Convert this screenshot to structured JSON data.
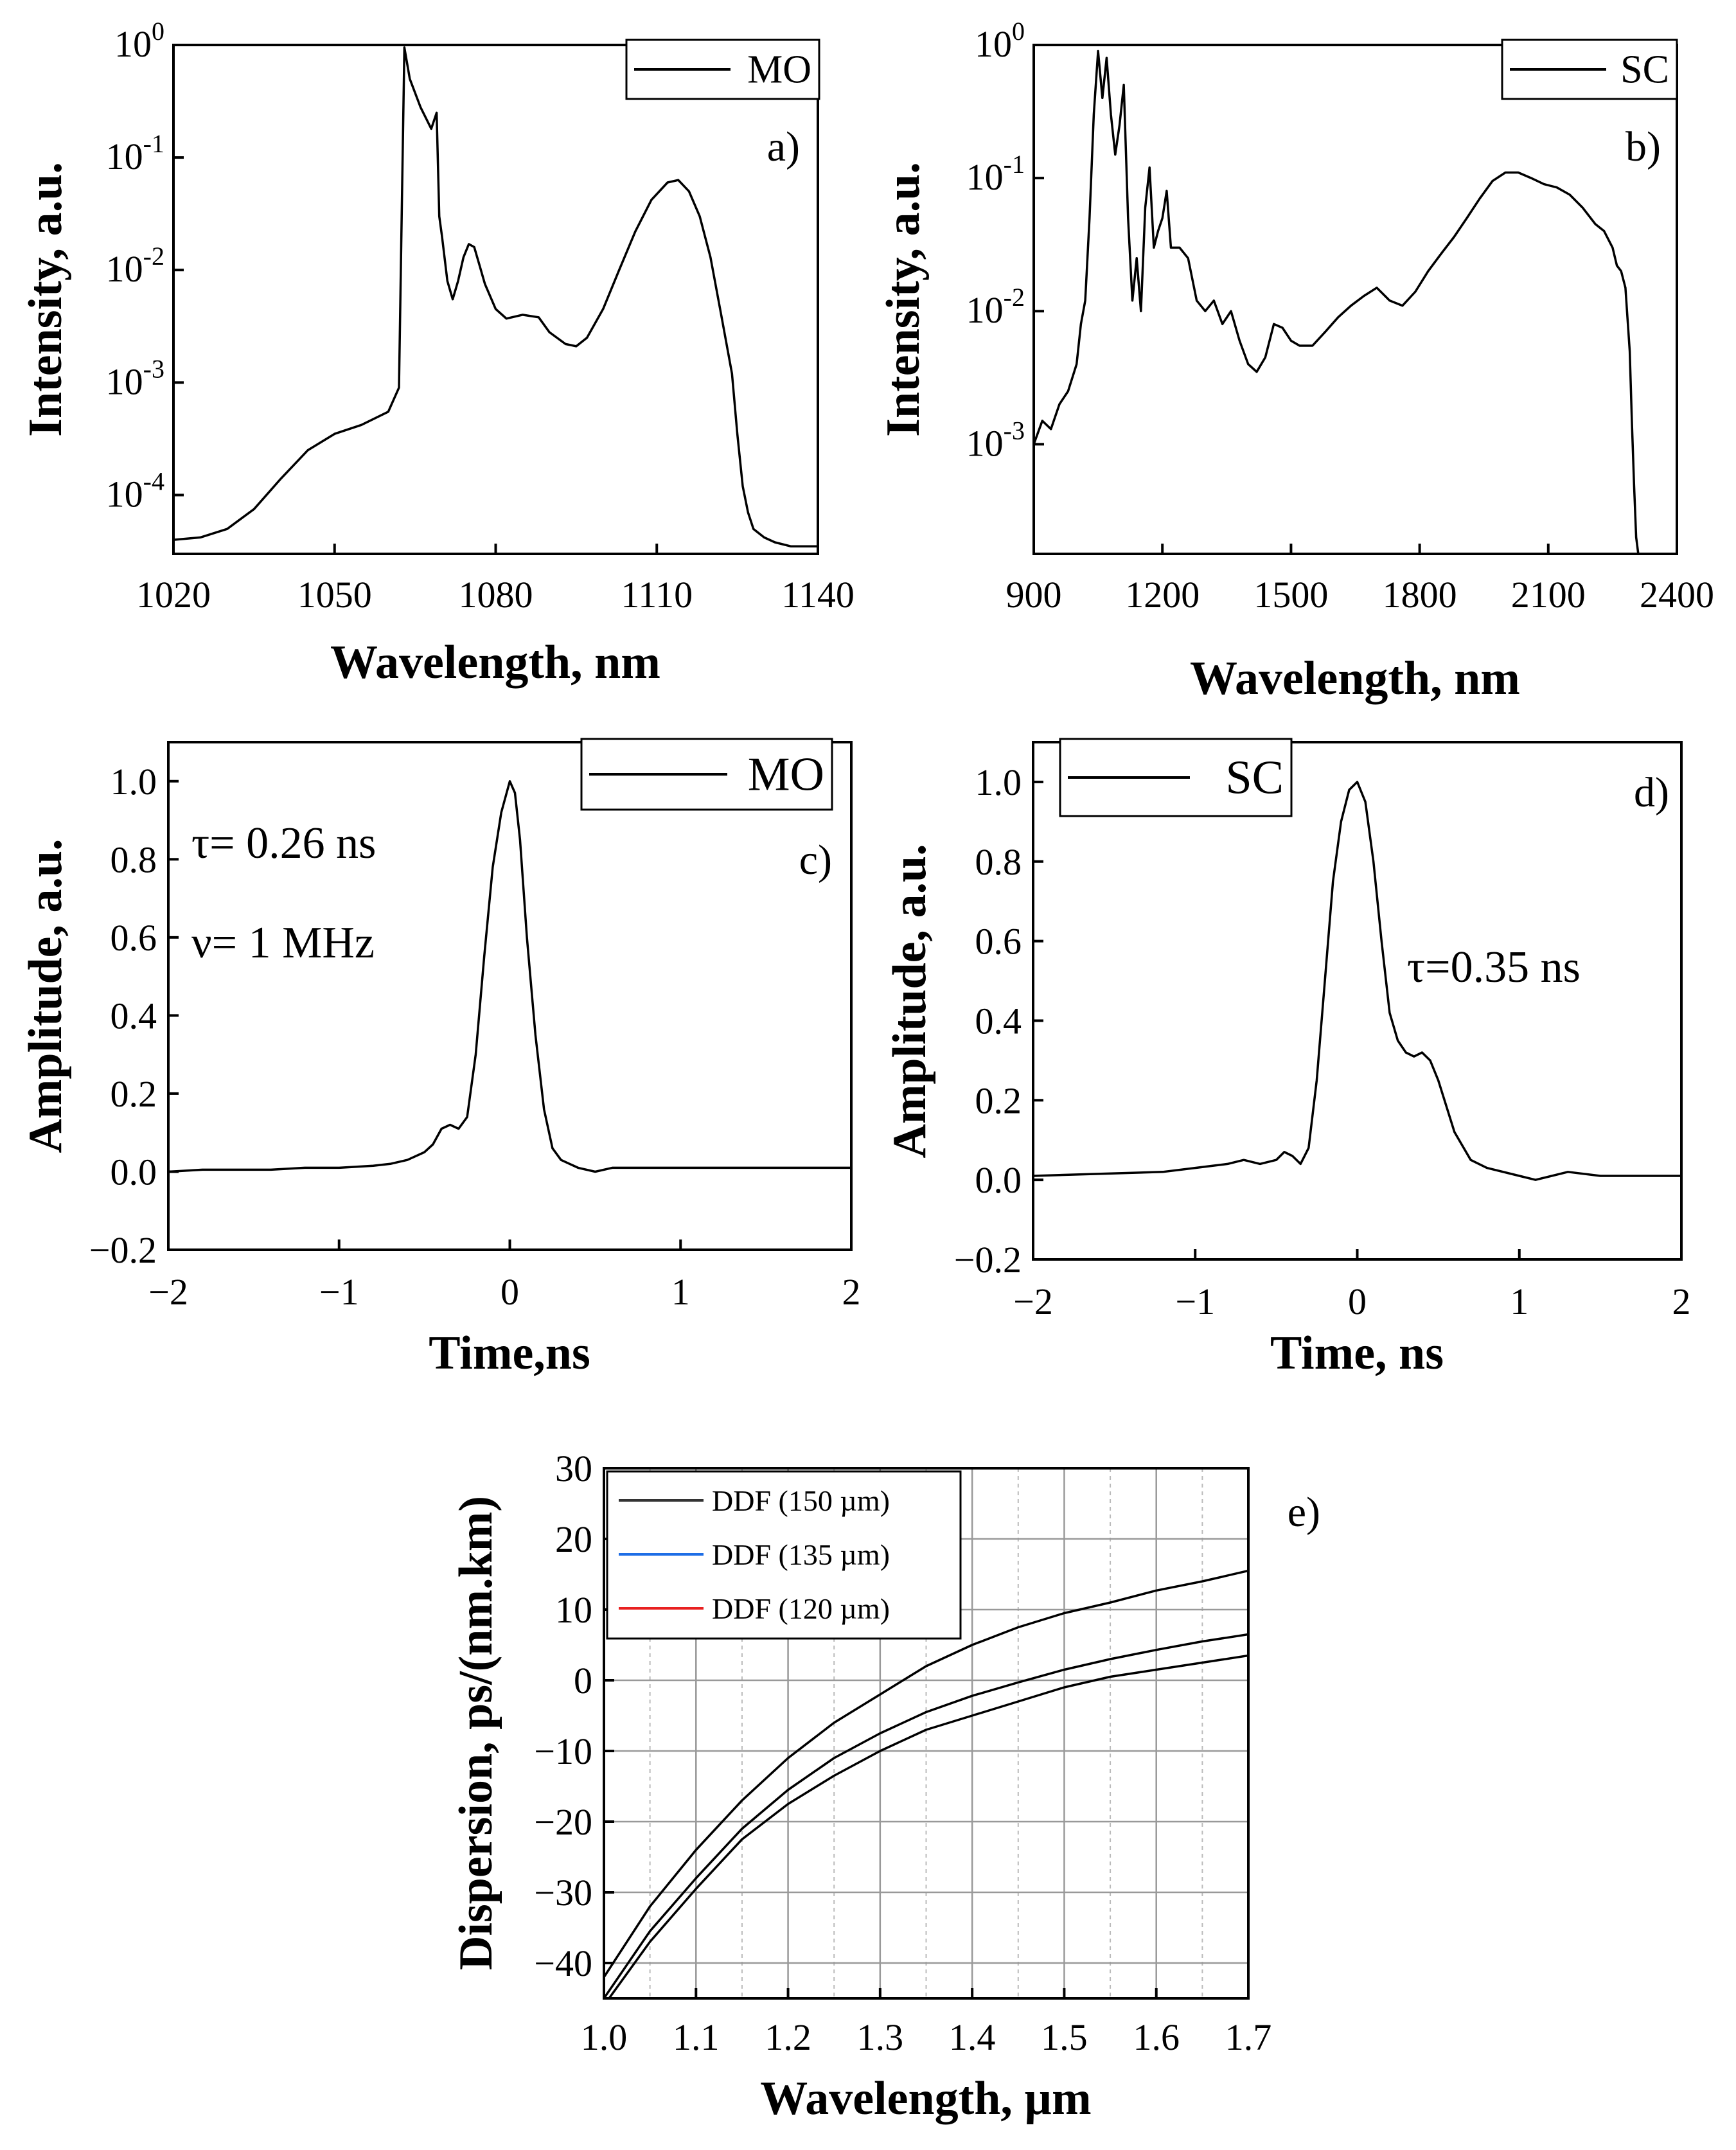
{
  "chart_data": [
    {
      "id": "a",
      "type": "line",
      "panel_label": "a)",
      "xlabel": "Wavelength, nm",
      "ylabel": "Intensity, a.u.",
      "xlim": [
        1020,
        1140
      ],
      "ylim": [
        3e-05,
        1.0
      ],
      "yscale": "log",
      "xticks": [
        "1020",
        "1050",
        "1080",
        "1110",
        "1140"
      ],
      "yticks": [
        {
          "base": "10",
          "exp": "0",
          "value": 1.0
        },
        {
          "base": "10",
          "exp": "-1",
          "value": 0.1
        },
        {
          "base": "10",
          "exp": "-2",
          "value": 0.01
        },
        {
          "base": "10",
          "exp": "-3",
          "value": 0.001
        },
        {
          "base": "10",
          "exp": "-4",
          "value": 0.0001
        }
      ],
      "grid": false,
      "legend_position": "top-right",
      "series": [
        {
          "name": "MO",
          "color": "#000000",
          "x": [
            1020,
            1025,
            1030,
            1035,
            1040,
            1045,
            1050,
            1055,
            1060,
            1062,
            1062.5,
            1063,
            1064,
            1066,
            1068,
            1069,
            1069.5,
            1070,
            1071,
            1072,
            1073,
            1074,
            1075,
            1076,
            1077,
            1078,
            1080,
            1082,
            1085,
            1088,
            1090,
            1093,
            1095,
            1097,
            1100,
            1103,
            1106,
            1109,
            1112,
            1114,
            1116,
            1118,
            1120,
            1122,
            1124,
            1125,
            1126,
            1127,
            1128,
            1130,
            1132,
            1135,
            1140
          ],
          "y": [
            4e-05,
            4.2e-05,
            5e-05,
            7.5e-05,
            0.00014,
            0.00025,
            0.00035,
            0.00042,
            0.00055,
            0.0009,
            0.03,
            0.95,
            0.5,
            0.28,
            0.18,
            0.25,
            0.03,
            0.02,
            0.008,
            0.0055,
            0.008,
            0.013,
            0.017,
            0.016,
            0.011,
            0.0075,
            0.0045,
            0.0037,
            0.004,
            0.0038,
            0.0028,
            0.0022,
            0.0021,
            0.0025,
            0.0045,
            0.01,
            0.022,
            0.042,
            0.06,
            0.063,
            0.05,
            0.03,
            0.013,
            0.004,
            0.0012,
            0.00035,
            0.00012,
            7e-05,
            5e-05,
            4.2e-05,
            3.8e-05,
            3.5e-05,
            3.5e-05
          ]
        }
      ]
    },
    {
      "id": "b",
      "type": "line",
      "panel_label": "b)",
      "xlabel": "Wavelength, nm",
      "ylabel": "Intensity, a.u.",
      "xlim": [
        900,
        2400
      ],
      "ylim": [
        0.00015,
        1.0
      ],
      "yscale": "log",
      "xticks": [
        "900",
        "1200",
        "1500",
        "1800",
        "2100",
        "2400"
      ],
      "yticks": [
        {
          "base": "10",
          "exp": "0",
          "value": 1.0
        },
        {
          "base": "10",
          "exp": "-1",
          "value": 0.1
        },
        {
          "base": "10",
          "exp": "-2",
          "value": 0.01
        },
        {
          "base": "10",
          "exp": "-3",
          "value": 0.001
        }
      ],
      "grid": false,
      "legend_position": "top-right",
      "series": [
        {
          "name": "SC",
          "color": "#000000",
          "x": [
            900,
            920,
            940,
            960,
            980,
            1000,
            1010,
            1020,
            1030,
            1040,
            1050,
            1060,
            1070,
            1080,
            1090,
            1100,
            1110,
            1120,
            1130,
            1140,
            1150,
            1160,
            1170,
            1180,
            1190,
            1200,
            1210,
            1220,
            1240,
            1260,
            1280,
            1300,
            1320,
            1340,
            1360,
            1380,
            1400,
            1420,
            1440,
            1460,
            1480,
            1500,
            1520,
            1550,
            1580,
            1610,
            1640,
            1670,
            1700,
            1730,
            1760,
            1790,
            1820,
            1850,
            1880,
            1910,
            1940,
            1970,
            2000,
            2030,
            2060,
            2090,
            2120,
            2150,
            2180,
            2210,
            2230,
            2250,
            2260,
            2270,
            2280,
            2290,
            2295,
            2300,
            2305,
            2310
          ],
          "y": [
            0.001,
            0.0015,
            0.0013,
            0.002,
            0.0025,
            0.004,
            0.008,
            0.012,
            0.05,
            0.3,
            0.9,
            0.4,
            0.8,
            0.3,
            0.15,
            0.25,
            0.5,
            0.05,
            0.012,
            0.025,
            0.01,
            0.06,
            0.12,
            0.03,
            0.04,
            0.05,
            0.08,
            0.03,
            0.03,
            0.025,
            0.012,
            0.01,
            0.012,
            0.008,
            0.01,
            0.006,
            0.004,
            0.0035,
            0.0045,
            0.008,
            0.0075,
            0.006,
            0.0055,
            0.0055,
            0.007,
            0.009,
            0.011,
            0.013,
            0.015,
            0.012,
            0.011,
            0.014,
            0.02,
            0.027,
            0.036,
            0.05,
            0.07,
            0.095,
            0.11,
            0.11,
            0.1,
            0.09,
            0.085,
            0.075,
            0.06,
            0.045,
            0.04,
            0.03,
            0.022,
            0.02,
            0.015,
            0.005,
            0.0015,
            0.0005,
            0.0002,
            0.00015
          ]
        }
      ]
    },
    {
      "id": "c",
      "type": "line",
      "panel_label": "c)",
      "xlabel": "Time,ns",
      "ylabel": "Amplitude, a.u.",
      "xlim": [
        -2,
        2
      ],
      "ylim": [
        -0.2,
        1.1
      ],
      "xticks": [
        "−2",
        "−1",
        "0",
        "1",
        "2"
      ],
      "yticks": [
        "−0.2",
        "0.0",
        "0.2",
        "0.4",
        "0.6",
        "0.8",
        "1.0"
      ],
      "grid": false,
      "legend_position": "top-right",
      "annotations": [
        "τ= 0.26 ns",
        "ν= 1 MHz"
      ],
      "series": [
        {
          "name": "MO",
          "color": "#000000",
          "x": [
            -2.0,
            -1.8,
            -1.6,
            -1.4,
            -1.2,
            -1.0,
            -0.8,
            -0.7,
            -0.6,
            -0.5,
            -0.45,
            -0.4,
            -0.35,
            -0.3,
            -0.25,
            -0.2,
            -0.15,
            -0.1,
            -0.05,
            0.0,
            0.03,
            0.06,
            0.1,
            0.15,
            0.2,
            0.25,
            0.3,
            0.35,
            0.4,
            0.5,
            0.6,
            0.8,
            1.0,
            1.2,
            1.4,
            1.6,
            1.8,
            2.0
          ],
          "y": [
            0.0,
            0.005,
            0.005,
            0.005,
            0.01,
            0.01,
            0.015,
            0.02,
            0.03,
            0.05,
            0.07,
            0.11,
            0.12,
            0.11,
            0.14,
            0.3,
            0.55,
            0.78,
            0.92,
            1.0,
            0.97,
            0.85,
            0.6,
            0.35,
            0.16,
            0.06,
            0.03,
            0.02,
            0.01,
            0.0,
            0.01,
            0.01,
            0.01,
            0.01,
            0.01,
            0.01,
            0.01,
            0.01
          ]
        }
      ]
    },
    {
      "id": "d",
      "type": "line",
      "panel_label": "d)",
      "xlabel": "Time, ns",
      "ylabel": "Amplitude, a.u.",
      "xlim": [
        -2,
        2
      ],
      "ylim": [
        -0.2,
        1.1
      ],
      "xticks": [
        "−2",
        "−1",
        "0",
        "1",
        "2"
      ],
      "yticks": [
        "−0.2",
        "0.0",
        "0.2",
        "0.4",
        "0.6",
        "0.8",
        "1.0"
      ],
      "grid": false,
      "legend_position": "top-left",
      "annotations": [
        "τ=0.35 ns"
      ],
      "series": [
        {
          "name": "SC",
          "color": "#000000",
          "x": [
            -2.0,
            -1.6,
            -1.2,
            -1.0,
            -0.9,
            -0.8,
            -0.7,
            -0.6,
            -0.5,
            -0.45,
            -0.4,
            -0.35,
            -0.3,
            -0.25,
            -0.2,
            -0.15,
            -0.1,
            -0.05,
            0.0,
            0.05,
            0.1,
            0.15,
            0.2,
            0.25,
            0.3,
            0.35,
            0.4,
            0.45,
            0.5,
            0.6,
            0.7,
            0.8,
            1.0,
            1.1,
            1.3,
            1.5,
            1.8,
            2.0
          ],
          "y": [
            0.01,
            0.015,
            0.02,
            0.03,
            0.035,
            0.04,
            0.05,
            0.04,
            0.05,
            0.07,
            0.06,
            0.04,
            0.08,
            0.25,
            0.5,
            0.75,
            0.9,
            0.98,
            1.0,
            0.95,
            0.8,
            0.6,
            0.42,
            0.35,
            0.32,
            0.31,
            0.32,
            0.3,
            0.25,
            0.12,
            0.05,
            0.03,
            0.01,
            0.0,
            0.02,
            0.01,
            0.01,
            0.01
          ]
        }
      ]
    },
    {
      "id": "e",
      "type": "line",
      "panel_label": "e)",
      "xlabel": "Wavelength, µm",
      "ylabel": "Dispersion, ps/(nm.km)",
      "xlim": [
        1.0,
        1.7
      ],
      "ylim": [
        -45,
        30
      ],
      "xticks": [
        "1.0",
        "1.1",
        "1.2",
        "1.3",
        "1.4",
        "1.5",
        "1.6",
        "1.7"
      ],
      "yticks": [
        "−40",
        "−30",
        "−20",
        "−10",
        "0",
        "10",
        "20",
        "30"
      ],
      "grid": true,
      "legend_position": "top-left",
      "series": [
        {
          "name": "DDF (150 µm)",
          "color": "#333333",
          "x": [
            1.0,
            1.05,
            1.1,
            1.15,
            1.2,
            1.25,
            1.3,
            1.35,
            1.4,
            1.45,
            1.5,
            1.55,
            1.6,
            1.65,
            1.7
          ],
          "y": [
            -42,
            -32,
            -24,
            -17,
            -11,
            -6,
            -2,
            2,
            5,
            7.5,
            9.5,
            11,
            12.7,
            14,
            15.5
          ]
        },
        {
          "name": "DDF (135 µm)",
          "color": "#1e6ee6",
          "x": [
            1.0,
            1.05,
            1.1,
            1.15,
            1.2,
            1.25,
            1.3,
            1.35,
            1.4,
            1.45,
            1.5,
            1.55,
            1.6,
            1.65,
            1.7
          ],
          "y": [
            -45,
            -35.5,
            -28,
            -21,
            -15.5,
            -11,
            -7.5,
            -4.5,
            -2.2,
            -0.3,
            1.5,
            3,
            4.3,
            5.5,
            6.5
          ]
        },
        {
          "name": "DDF (120 µm)",
          "color": "#e82020",
          "x": [
            1.0,
            1.05,
            1.1,
            1.15,
            1.2,
            1.25,
            1.3,
            1.35,
            1.4,
            1.45,
            1.5,
            1.55,
            1.6,
            1.65,
            1.7
          ],
          "y": [
            -46,
            -37,
            -29.5,
            -22.5,
            -17.5,
            -13.5,
            -10,
            -7,
            -5,
            -3,
            -1,
            0.5,
            1.5,
            2.5,
            3.5
          ]
        }
      ]
    }
  ]
}
